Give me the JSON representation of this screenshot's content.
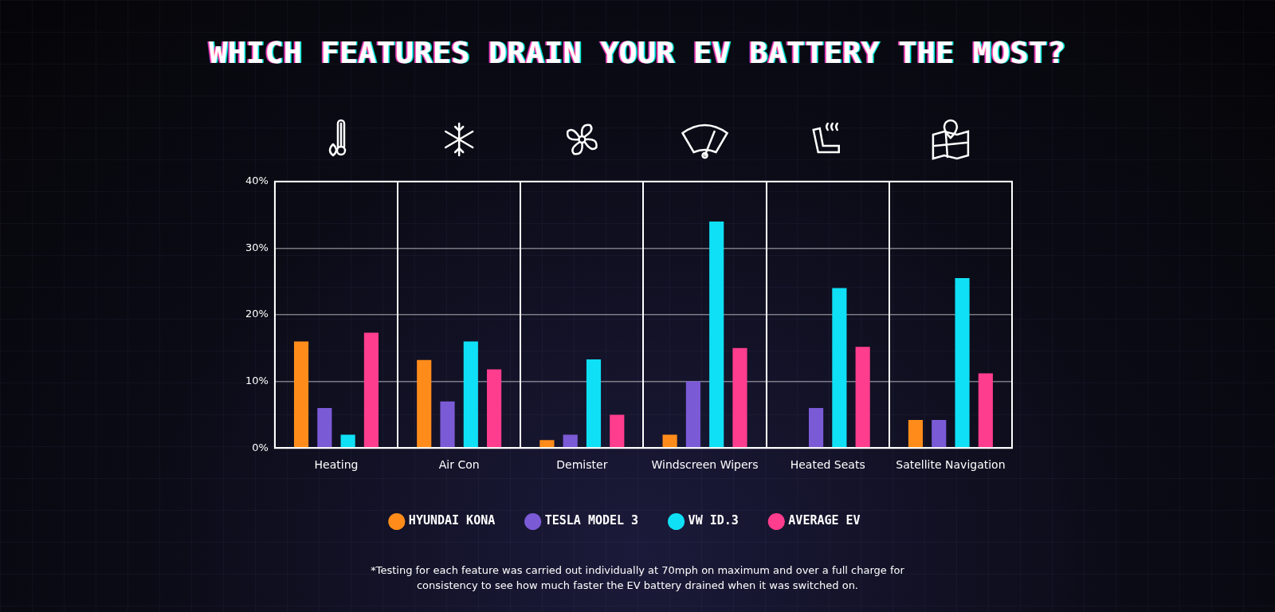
{
  "chart_data": {
    "type": "bar",
    "title": "WHICH FEATURES DRAIN YOUR EV BATTERY THE MOST?",
    "categories": [
      "Heating",
      "Air Con",
      "Demister",
      "Windscreen Wipers",
      "Heated Seats",
      "Satellite Navigation"
    ],
    "series": [
      {
        "name": "HYUNDAI KONA",
        "color": "#ff8c1a",
        "values": [
          16,
          13.2,
          1.2,
          2,
          0,
          4.2
        ]
      },
      {
        "name": "TESLA MODEL 3",
        "color": "#7b5ad6",
        "values": [
          6,
          7,
          2,
          10,
          6,
          4.2
        ]
      },
      {
        "name": "VW ID.3",
        "color": "#10e0f5",
        "values": [
          2,
          16,
          13.3,
          34,
          24,
          25.5
        ]
      },
      {
        "name": "AVERAGE EV",
        "color": "#ff3d8e",
        "values": [
          17.3,
          11.8,
          5,
          15,
          15.2,
          11.2
        ]
      }
    ],
    "ylim": [
      0,
      40
    ],
    "yticks": [
      {
        "value": 0,
        "label": "0%"
      },
      {
        "value": 10,
        "label": "10%"
      },
      {
        "value": 20,
        "label": "20%"
      },
      {
        "value": 30,
        "label": "30%"
      },
      {
        "value": 40,
        "label": "40%"
      }
    ],
    "grid": true,
    "legend": "bottom",
    "footnote": "*Testing for each feature was carried out individually at 70mph on maximum and over a full charge for consistency to see how much faster the EV battery drained when it was switched on."
  }
}
